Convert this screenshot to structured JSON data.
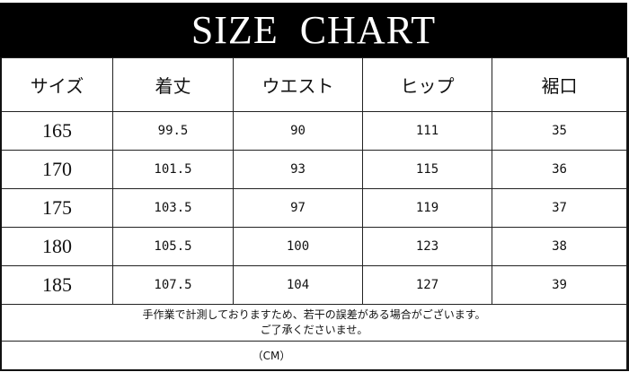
{
  "title": "SIZE  CHART",
  "headers": [
    "サイズ",
    "着丈",
    "ウエスト",
    "ヒップ",
    "裾口"
  ],
  "rows": [
    [
      "165",
      "99.5",
      "90",
      "111",
      "35"
    ],
    [
      "170",
      "101.5",
      "93",
      "115",
      "36"
    ],
    [
      "175",
      "103.5",
      "97",
      "119",
      "37"
    ],
    [
      "180",
      "105.5",
      "100",
      "123",
      "38"
    ],
    [
      "185",
      "107.5",
      "104",
      "127",
      "39"
    ]
  ],
  "note": {
    "line1": "手作業で計測しておりますため、若干の誤差がある場合がございます。",
    "line2": "ご了承くださいませ。"
  },
  "unit": "（CM）"
}
